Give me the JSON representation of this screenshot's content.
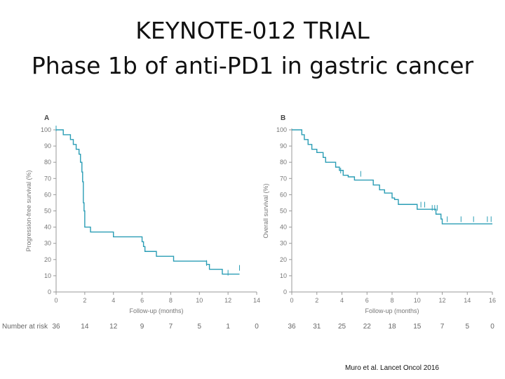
{
  "title": {
    "line1": "KEYNOTE-012 TRIAL",
    "line2": "Phase 1b of anti-PD1 in gastric cancer"
  },
  "citation": "Muro et al. Lancet Oncol 2016",
  "colors": {
    "curve": "#2a9db5",
    "axis": "#999999",
    "text": "#777777"
  },
  "chart_data": [
    {
      "type": "line",
      "panel_label": "A",
      "xlabel": "Follow-up (months)",
      "ylabel": "Progression-free survival (%)",
      "xlim": [
        0,
        14
      ],
      "ylim": [
        0,
        100
      ],
      "x_ticks": [
        0,
        2,
        4,
        6,
        8,
        10,
        12,
        14
      ],
      "y_ticks": [
        0,
        10,
        20,
        30,
        40,
        50,
        60,
        70,
        80,
        90,
        100
      ],
      "steps": [
        [
          0,
          100
        ],
        [
          0.5,
          97
        ],
        [
          1.0,
          94
        ],
        [
          1.2,
          91
        ],
        [
          1.4,
          88
        ],
        [
          1.6,
          85
        ],
        [
          1.7,
          80
        ],
        [
          1.8,
          74
        ],
        [
          1.85,
          68
        ],
        [
          1.9,
          55
        ],
        [
          1.95,
          50
        ],
        [
          2.0,
          40
        ],
        [
          2.4,
          37
        ],
        [
          4.0,
          34
        ],
        [
          6.0,
          31
        ],
        [
          6.1,
          28
        ],
        [
          6.2,
          25
        ],
        [
          7.0,
          22
        ],
        [
          8.2,
          19
        ],
        [
          10.5,
          17
        ],
        [
          10.7,
          14
        ],
        [
          11.6,
          11
        ],
        [
          12.8,
          11
        ]
      ],
      "censor_marks": [
        [
          0,
          100
        ],
        [
          10.5,
          17
        ],
        [
          12.0,
          11
        ],
        [
          12.8,
          14
        ]
      ],
      "risk_label": "Number at risk",
      "risk_x": [
        0,
        2,
        4,
        6,
        8,
        10,
        12,
        14
      ],
      "risk_values": [
        36,
        14,
        12,
        9,
        7,
        5,
        1,
        0
      ]
    },
    {
      "type": "line",
      "panel_label": "B",
      "xlabel": "Follow-up (months)",
      "ylabel": "Overall survival (%)",
      "xlim": [
        0,
        16
      ],
      "ylim": [
        0,
        100
      ],
      "x_ticks": [
        0,
        2,
        4,
        6,
        8,
        10,
        12,
        14,
        16
      ],
      "y_ticks": [
        0,
        10,
        20,
        30,
        40,
        50,
        60,
        70,
        80,
        90,
        100
      ],
      "steps": [
        [
          0,
          100
        ],
        [
          0.8,
          97
        ],
        [
          1.0,
          94
        ],
        [
          1.3,
          91
        ],
        [
          1.6,
          88
        ],
        [
          2.0,
          86
        ],
        [
          2.5,
          83
        ],
        [
          2.7,
          80
        ],
        [
          3.5,
          77
        ],
        [
          3.8,
          75
        ],
        [
          4.1,
          72
        ],
        [
          4.5,
          71
        ],
        [
          5.0,
          69
        ],
        [
          6.5,
          66
        ],
        [
          7.0,
          63
        ],
        [
          7.4,
          61
        ],
        [
          8.0,
          58
        ],
        [
          8.2,
          57
        ],
        [
          8.5,
          54
        ],
        [
          10.0,
          51
        ],
        [
          11.2,
          51
        ],
        [
          11.5,
          48
        ],
        [
          11.9,
          45
        ],
        [
          12.0,
          42
        ],
        [
          16.0,
          42
        ]
      ],
      "censor_marks": [
        [
          3.9,
          74
        ],
        [
          5.5,
          72
        ],
        [
          10.3,
          53
        ],
        [
          10.6,
          53
        ],
        [
          11.2,
          51
        ],
        [
          11.4,
          51
        ],
        [
          11.6,
          51
        ],
        [
          12.4,
          44
        ],
        [
          13.5,
          44
        ],
        [
          14.5,
          44
        ],
        [
          15.6,
          44
        ],
        [
          15.9,
          44
        ]
      ],
      "risk_label": "",
      "risk_x": [
        0,
        2,
        4,
        6,
        8,
        10,
        12,
        14,
        16
      ],
      "risk_values": [
        36,
        31,
        25,
        22,
        18,
        15,
        7,
        5,
        0
      ]
    }
  ]
}
